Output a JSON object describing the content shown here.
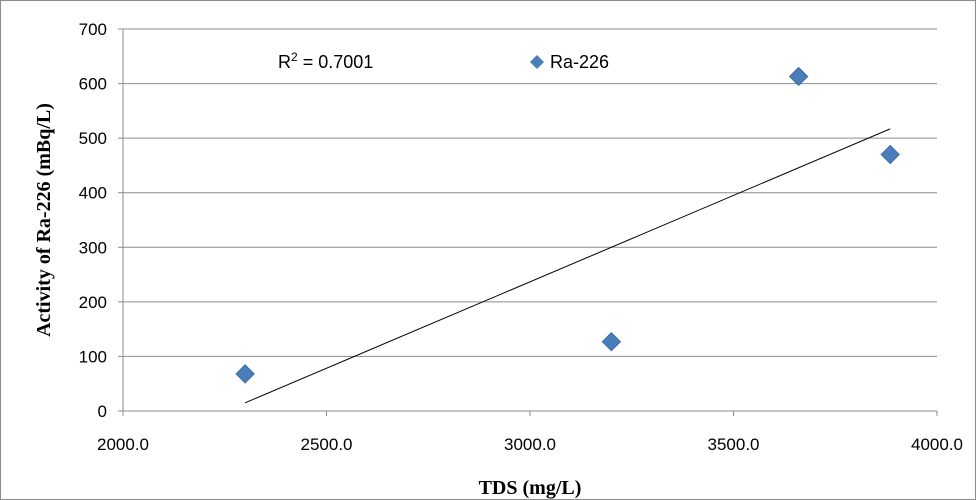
{
  "chart_data": {
    "type": "scatter",
    "title": "",
    "xlabel": "TDS (mg/L)",
    "ylabel": "Activity of Ra-226 (mBq/L)",
    "xlim": [
      2000,
      4000
    ],
    "ylim": [
      0,
      700
    ],
    "x_ticks": [
      2000,
      2500,
      3000,
      3500,
      4000
    ],
    "x_tick_labels": [
      "2000.0",
      "2500.0",
      "3000.0",
      "3500.0",
      "4000.0"
    ],
    "y_ticks": [
      0,
      100,
      200,
      300,
      400,
      500,
      600,
      700
    ],
    "y_tick_labels": [
      "0",
      "100",
      "200",
      "300",
      "400",
      "500",
      "600",
      "700"
    ],
    "grid": "horizontal",
    "legend": {
      "position": "top-center",
      "entries": [
        "Ra-226"
      ]
    },
    "series": [
      {
        "name": "Ra-226",
        "color": "#4a7ebb",
        "marker": "diamond",
        "points": [
          {
            "x": 2300,
            "y": 68
          },
          {
            "x": 3200,
            "y": 127
          },
          {
            "x": 3660,
            "y": 613
          },
          {
            "x": 3885,
            "y": 470
          }
        ]
      }
    ],
    "trendline": {
      "type": "linear",
      "x_start": 2300,
      "y_start": 15,
      "x_end": 3885,
      "y_end": 517,
      "color": "#000000"
    },
    "annotations": {
      "r2_prefix": "R",
      "r2_superscript": "2",
      "r2_value": " = 0.7001"
    }
  }
}
